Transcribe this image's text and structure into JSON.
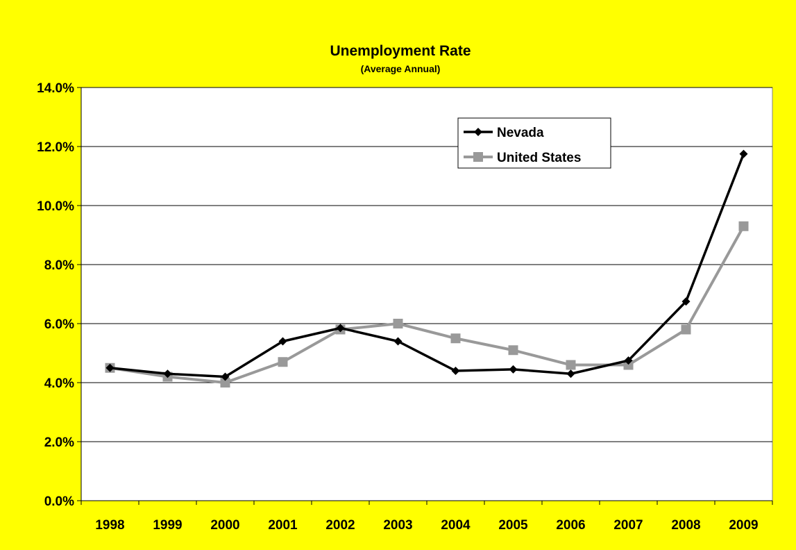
{
  "chart_data": {
    "type": "line",
    "title": "Unemployment Rate",
    "subtitle": "(Average Annual)",
    "xlabel": "",
    "ylabel": "",
    "categories": [
      "1998",
      "1999",
      "2000",
      "2001",
      "2002",
      "2003",
      "2004",
      "2005",
      "2006",
      "2007",
      "2008",
      "2009"
    ],
    "ylim": [
      0,
      14
    ],
    "yticks": [
      0,
      2,
      4,
      6,
      8,
      10,
      12,
      14
    ],
    "ytick_labels": [
      "0.0%",
      "2.0%",
      "4.0%",
      "6.0%",
      "8.0%",
      "10.0%",
      "12.0%",
      "14.0%"
    ],
    "grid": "horizontal",
    "legend_position": "top-right",
    "series": [
      {
        "name": "Nevada",
        "color": "#000000",
        "marker": "diamond",
        "values": [
          4.5,
          4.3,
          4.2,
          5.4,
          5.85,
          5.4,
          4.4,
          4.45,
          4.3,
          4.75,
          6.75,
          11.75
        ]
      },
      {
        "name": "United States",
        "color": "#999999",
        "marker": "square",
        "values": [
          4.5,
          4.2,
          4.0,
          4.7,
          5.8,
          6.0,
          5.5,
          5.1,
          4.6,
          4.6,
          5.8,
          9.3
        ]
      }
    ]
  }
}
